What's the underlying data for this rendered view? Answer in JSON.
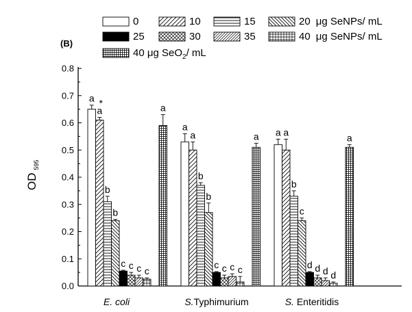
{
  "chart_data": {
    "type": "bar",
    "panel_label": "(B)",
    "ylabel": "OD",
    "ylabel_sub": "595",
    "ylim": [
      0,
      0.8
    ],
    "yticks": [
      "0.0",
      "0.1",
      "0.2",
      "0.3",
      "0.4",
      "0.5",
      "0.6",
      "0.7",
      "0.8"
    ],
    "categories": [
      {
        "pre": "",
        "italic": "E. coli",
        "post": ""
      },
      {
        "pre": "",
        "italic": "S.",
        "post": "Typhimurium"
      },
      {
        "pre": "",
        "italic": "S.",
        "post": " Enteritidis"
      }
    ],
    "legend": {
      "rows": [
        {
          "items": [
            "0",
            "10",
            "15",
            "20"
          ],
          "suffix": "μg SeNPs/ mL"
        },
        {
          "items": [
            "25",
            "30",
            "35",
            "40"
          ],
          "suffix": "μg SeNPs/ mL"
        },
        {
          "items": [
            "40 μg SeO"
          ],
          "sub": "2",
          "suffix": "/ mL"
        }
      ]
    },
    "series": [
      {
        "name": "0",
        "pattern": "white",
        "values": [
          0.65,
          0.53,
          0.52
        ],
        "errors": [
          0.015,
          0.03,
          0.02
        ],
        "labels": [
          "a",
          "a",
          "a"
        ]
      },
      {
        "name": "10",
        "pattern": "diag",
        "values": [
          0.61,
          0.5,
          0.5
        ],
        "errors": [
          0.01,
          0.03,
          0.04
        ],
        "labels": [
          "a",
          "a",
          "a"
        ],
        "extra": [
          "*",
          "",
          ""
        ]
      },
      {
        "name": "15",
        "pattern": "horiz",
        "values": [
          0.31,
          0.37,
          0.33
        ],
        "errors": [
          0.02,
          0.01,
          0.02
        ],
        "labels": [
          "b",
          "b",
          "b"
        ]
      },
      {
        "name": "20",
        "pattern": "backdiag",
        "values": [
          0.24,
          0.27,
          0.24
        ],
        "errors": [
          0.005,
          0.035,
          0.01
        ],
        "labels": [
          "b",
          "b",
          "c"
        ]
      },
      {
        "name": "25",
        "pattern": "black",
        "values": [
          0.055,
          0.05,
          0.05
        ],
        "errors": [
          0.003,
          0.003,
          0.003
        ],
        "labels": [
          "c",
          "c",
          "d"
        ]
      },
      {
        "name": "30",
        "pattern": "cross",
        "values": [
          0.04,
          0.03,
          0.03
        ],
        "errors": [
          0.01,
          0.01,
          0.01
        ],
        "labels": [
          "c",
          "c",
          "d"
        ]
      },
      {
        "name": "35",
        "pattern": "diag2",
        "values": [
          0.03,
          0.035,
          0.02
        ],
        "errors": [
          0.01,
          0.01,
          0.01
        ],
        "labels": [
          "c",
          "c",
          "d"
        ]
      },
      {
        "name": "40",
        "pattern": "grid",
        "values": [
          0.025,
          0.015,
          0.01
        ],
        "errors": [
          0.005,
          0.02,
          0.005
        ],
        "labels": [
          "c",
          "c",
          "d"
        ]
      },
      {
        "name": "40 μg SeO2/ mL",
        "pattern": "dense",
        "values": [
          0.59,
          0.51,
          0.51
        ],
        "errors": [
          0.04,
          0.015,
          0.01
        ],
        "labels": [
          "a",
          "a",
          "a"
        ]
      }
    ]
  }
}
